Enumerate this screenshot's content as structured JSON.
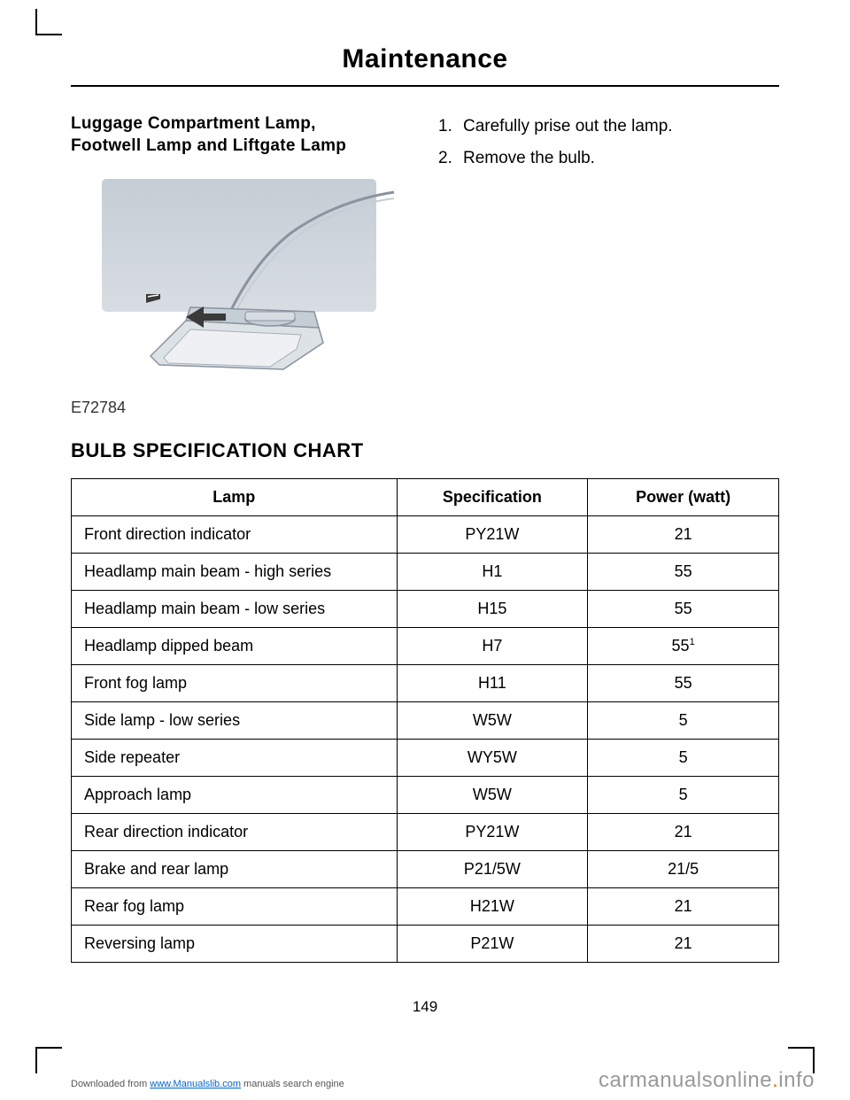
{
  "page": {
    "title": "Maintenance",
    "number": "149"
  },
  "section1": {
    "subtitle_line1": "Luggage Compartment Lamp,",
    "subtitle_line2": "Footwell Lamp and Liftgate Lamp",
    "figure_ref": "E72784",
    "steps": [
      {
        "num": "1.",
        "text": "Carefully prise out the lamp."
      },
      {
        "num": "2.",
        "text": "Remove the bulb."
      }
    ]
  },
  "section2": {
    "title": "BULB SPECIFICATION CHART",
    "table": {
      "columns": [
        "Lamp",
        "Specification",
        "Power (watt)"
      ],
      "rows": [
        {
          "lamp": "Front direction indicator",
          "spec": "PY21W",
          "power": "21",
          "sup": ""
        },
        {
          "lamp": "Headlamp main beam - high series",
          "spec": "H1",
          "power": "55",
          "sup": ""
        },
        {
          "lamp": "Headlamp main beam - low series",
          "spec": "H15",
          "power": "55",
          "sup": ""
        },
        {
          "lamp": "Headlamp dipped beam",
          "spec": "H7",
          "power": "55",
          "sup": "1"
        },
        {
          "lamp": "Front fog lamp",
          "spec": "H11",
          "power": "55",
          "sup": ""
        },
        {
          "lamp": "Side lamp - low series",
          "spec": "W5W",
          "power": "5",
          "sup": ""
        },
        {
          "lamp": "Side repeater",
          "spec": "WY5W",
          "power": "5",
          "sup": ""
        },
        {
          "lamp": "Approach lamp",
          "spec": "W5W",
          "power": "5",
          "sup": ""
        },
        {
          "lamp": "Rear direction indicator",
          "spec": "PY21W",
          "power": "21",
          "sup": ""
        },
        {
          "lamp": "Brake and rear lamp",
          "spec": "P21/5W",
          "power": "21/5",
          "sup": ""
        },
        {
          "lamp": "Rear fog lamp",
          "spec": "H21W",
          "power": "21",
          "sup": ""
        },
        {
          "lamp": "Reversing lamp",
          "spec": "P21W",
          "power": "21",
          "sup": ""
        }
      ]
    }
  },
  "footer": {
    "left_prefix": "Downloaded from ",
    "left_link": "www.Manualslib.com",
    "left_suffix": " manuals search engine",
    "right_text": "carmanualsonline",
    "right_dot": ".",
    "right_ext": "info"
  },
  "colors": {
    "text": "#000000",
    "border": "#000000",
    "illus_bg_top": "#c5cdd5",
    "illus_bg_bottom": "#d8dde3",
    "illus_shape": "#b8bfc8",
    "illus_shape_light": "#dde2e7",
    "footer_gray": "#999999",
    "footer_orange": "#ff6600",
    "link": "#0066cc"
  }
}
